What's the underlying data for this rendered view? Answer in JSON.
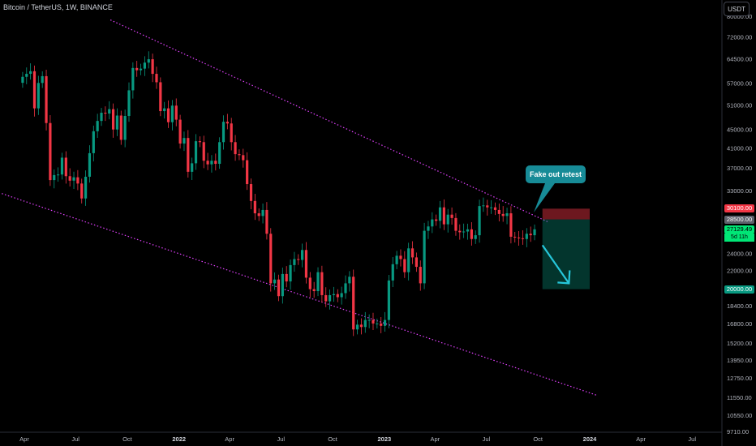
{
  "header": {
    "title": "Bitcoin / TetherUS, 1W, BINANCE",
    "currency": "USDT"
  },
  "annotation": {
    "callout": "Fake out retest"
  },
  "price_tags": {
    "upper": {
      "label": "30100.00",
      "color": "#f23645"
    },
    "mid": {
      "label": "28500.00",
      "color": "#5d606b"
    },
    "current": {
      "label": "27129.49",
      "color": "#00e676"
    },
    "countdown": "5d 11h",
    "target": {
      "label": "20000.00",
      "color": "#089981"
    }
  },
  "colors": {
    "bull": "#089981",
    "bear": "#f23645",
    "channel": "#e040fb",
    "arrow": "#26c6da",
    "callout_bg": "#178b97"
  },
  "chart_data": {
    "type": "candlestick",
    "symbol": "Bitcoin / TetherUS",
    "interval": "1W",
    "exchange": "BINANCE",
    "y_scale": "log",
    "ylim": [
      9710,
      80000
    ],
    "y_ticks": [
      "80000.00",
      "72000.00",
      "64500.00",
      "57000.00",
      "51000.00",
      "45000.00",
      "41000.00",
      "37000.00",
      "33000.00",
      "30100.00",
      "28500.00",
      "27129.49",
      "24000.00",
      "22000.00",
      "20000.00",
      "18400.00",
      "16800.00",
      "15200.00",
      "13950.00",
      "12750.00",
      "11550.00",
      "10550.00",
      "9710.00"
    ],
    "x_ticks": [
      "Apr",
      "Jul",
      "Oct",
      "2022",
      "Apr",
      "Jul",
      "Oct",
      "2023",
      "Apr",
      "Jul",
      "Oct",
      "2024",
      "Apr",
      "Jul"
    ],
    "series": [
      {
        "name": "BTCUSDT 1W",
        "close_path": [
          [
            "2021-03-29",
            58800
          ],
          [
            "2021-04-05",
            59700
          ],
          [
            "2021-04-12",
            60500
          ],
          [
            "2021-04-19",
            50100
          ],
          [
            "2021-04-26",
            57000
          ],
          [
            "2021-05-03",
            59000
          ],
          [
            "2021-05-10",
            46500
          ],
          [
            "2021-05-17",
            34800
          ],
          [
            "2021-05-24",
            35700
          ],
          [
            "2021-05-31",
            35800
          ],
          [
            "2021-06-07",
            39000
          ],
          [
            "2021-06-14",
            35500
          ],
          [
            "2021-06-21",
            34700
          ],
          [
            "2021-06-28",
            35300
          ],
          [
            "2021-07-05",
            34200
          ],
          [
            "2021-07-12",
            31700
          ],
          [
            "2021-07-19",
            35400
          ],
          [
            "2021-07-26",
            39900
          ],
          [
            "2021-08-02",
            44600
          ],
          [
            "2021-08-09",
            47000
          ],
          [
            "2021-08-16",
            49000
          ],
          [
            "2021-08-23",
            48800
          ],
          [
            "2021-08-30",
            49900
          ],
          [
            "2021-09-06",
            45000
          ],
          [
            "2021-09-13",
            48300
          ],
          [
            "2021-09-20",
            42700
          ],
          [
            "2021-09-27",
            48200
          ],
          [
            "2021-10-04",
            54900
          ],
          [
            "2021-10-11",
            61500
          ],
          [
            "2021-10-18",
            60800
          ],
          [
            "2021-10-25",
            61300
          ],
          [
            "2021-11-01",
            63200
          ],
          [
            "2021-11-08",
            64300
          ],
          [
            "2021-11-15",
            59700
          ],
          [
            "2021-11-22",
            57200
          ],
          [
            "2021-11-29",
            49400
          ],
          [
            "2021-12-06",
            50100
          ],
          [
            "2021-12-13",
            46700
          ],
          [
            "2021-12-20",
            50800
          ],
          [
            "2021-12-27",
            47300
          ],
          [
            "2022-01-03",
            41900
          ],
          [
            "2022-01-10",
            43100
          ],
          [
            "2022-01-17",
            36300
          ],
          [
            "2022-01-24",
            37900
          ],
          [
            "2022-01-31",
            42400
          ],
          [
            "2022-02-07",
            42200
          ],
          [
            "2022-02-14",
            38400
          ],
          [
            "2022-02-21",
            37700
          ],
          [
            "2022-02-28",
            38400
          ],
          [
            "2022-03-07",
            37800
          ],
          [
            "2022-03-14",
            42200
          ],
          [
            "2022-03-21",
            46800
          ],
          [
            "2022-03-28",
            46400
          ],
          [
            "2022-04-04",
            42200
          ],
          [
            "2022-04-11",
            39700
          ],
          [
            "2022-04-18",
            39500
          ],
          [
            "2022-04-25",
            38500
          ],
          [
            "2022-05-02",
            34100
          ],
          [
            "2022-05-09",
            31300
          ],
          [
            "2022-05-16",
            29400
          ],
          [
            "2022-05-23",
            29000
          ],
          [
            "2022-05-30",
            29900
          ],
          [
            "2022-06-06",
            26500
          ],
          [
            "2022-06-13",
            20600
          ],
          [
            "2022-06-20",
            21000
          ],
          [
            "2022-06-27",
            19300
          ],
          [
            "2022-07-04",
            21600
          ],
          [
            "2022-07-11",
            20800
          ],
          [
            "2022-07-18",
            22600
          ],
          [
            "2022-07-25",
            23300
          ],
          [
            "2022-08-01",
            23200
          ],
          [
            "2022-08-08",
            24400
          ],
          [
            "2022-08-15",
            21200
          ],
          [
            "2022-08-22",
            20000
          ],
          [
            "2022-08-29",
            19800
          ],
          [
            "2022-09-05",
            21800
          ],
          [
            "2022-09-12",
            19400
          ],
          [
            "2022-09-19",
            18800
          ],
          [
            "2022-09-26",
            19400
          ],
          [
            "2022-10-03",
            19500
          ],
          [
            "2022-10-10",
            19200
          ],
          [
            "2022-10-17",
            19600
          ],
          [
            "2022-10-24",
            20600
          ],
          [
            "2022-10-31",
            21300
          ],
          [
            "2022-11-07",
            16300
          ],
          [
            "2022-11-14",
            16700
          ],
          [
            "2022-11-21",
            16500
          ],
          [
            "2022-11-28",
            17100
          ],
          [
            "2022-12-05",
            17100
          ],
          [
            "2022-12-12",
            16800
          ],
          [
            "2022-12-19",
            16800
          ],
          [
            "2022-12-26",
            16600
          ],
          [
            "2023-01-02",
            17100
          ],
          [
            "2023-01-09",
            20900
          ],
          [
            "2023-01-16",
            22700
          ],
          [
            "2023-01-23",
            23700
          ],
          [
            "2023-01-30",
            23300
          ],
          [
            "2023-02-06",
            21800
          ],
          [
            "2023-02-13",
            24600
          ],
          [
            "2023-02-20",
            23500
          ],
          [
            "2023-02-27",
            22400
          ],
          [
            "2023-03-06",
            20600
          ],
          [
            "2023-03-13",
            26900
          ],
          [
            "2023-03-20",
            27500
          ],
          [
            "2023-03-27",
            28500
          ],
          [
            "2023-04-03",
            28300
          ],
          [
            "2023-04-10",
            30300
          ],
          [
            "2023-04-17",
            27800
          ],
          [
            "2023-04-24",
            29200
          ],
          [
            "2023-05-01",
            28700
          ],
          [
            "2023-05-08",
            26900
          ],
          [
            "2023-05-15",
            26700
          ],
          [
            "2023-05-22",
            26800
          ],
          [
            "2023-05-29",
            27100
          ],
          [
            "2023-06-05",
            25800
          ],
          [
            "2023-06-12",
            26300
          ],
          [
            "2023-06-19",
            30500
          ],
          [
            "2023-06-26",
            30600
          ],
          [
            "2023-07-03",
            30300
          ],
          [
            "2023-07-10",
            30300
          ],
          [
            "2023-07-17",
            29900
          ],
          [
            "2023-07-24",
            29300
          ],
          [
            "2023-07-31",
            29000
          ],
          [
            "2023-08-07",
            29400
          ],
          [
            "2023-08-14",
            26100
          ],
          [
            "2023-08-21",
            26000
          ],
          [
            "2023-08-28",
            25900
          ],
          [
            "2023-09-04",
            25800
          ],
          [
            "2023-09-11",
            26500
          ],
          [
            "2023-09-18",
            26300
          ],
          [
            "2023-09-25",
            27100
          ]
        ]
      }
    ],
    "drawings": {
      "channel_upper": [
        [
          "2021-09-01",
          78500
        ],
        [
          "2023-10-20",
          28100
        ]
      ],
      "channel_lower": [
        [
          "2021-02-20",
          32500
        ],
        [
          "2024-01-15",
          11650
        ]
      ],
      "short_position": {
        "entry": 28500,
        "stop": 30100,
        "target": 20000,
        "from": "2023-10-09",
        "to": "2024-01-01"
      },
      "arrow": [
        [
          "2023-10-09",
          25000
        ],
        [
          "2023-11-25",
          20600
        ]
      ]
    }
  }
}
